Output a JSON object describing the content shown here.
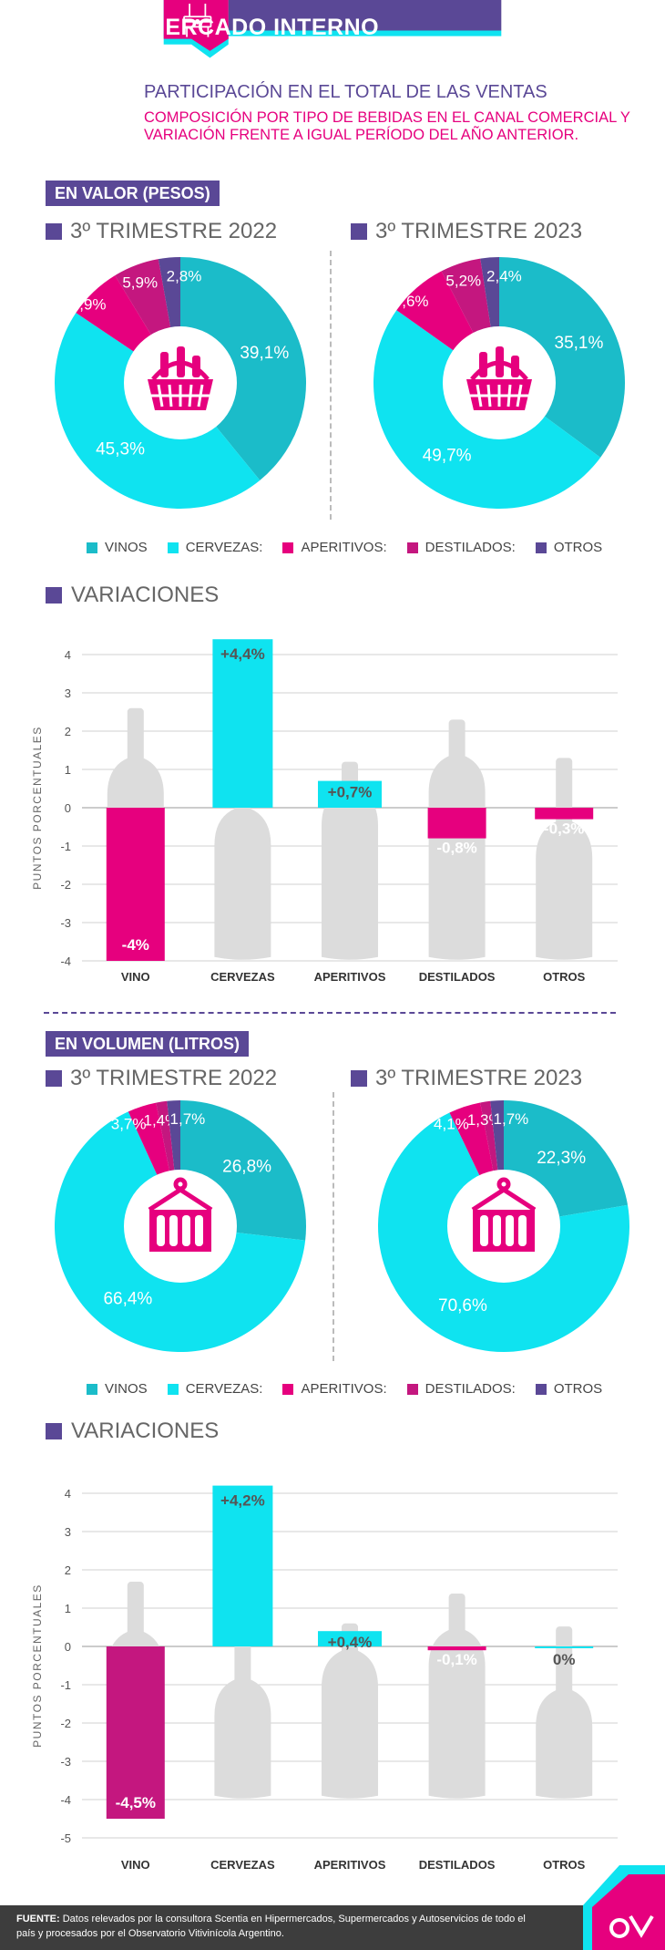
{
  "header": {
    "title": "MERCADO INTERNO",
    "subtitle": "PARTICIPACIÓN EN EL TOTAL DE LAS VENTAS",
    "description": "COMPOSICIÓN POR TIPO DE BEBIDAS EN EL CANAL COMERCIAL Y VARIACIÓN FRENTE A IGUAL PERÍODO DEL AÑO ANTERIOR."
  },
  "colors": {
    "vinos": "#1bbcc9",
    "cervezas": "#0fe3f0",
    "aperitivos": "#e6007e",
    "destilados": "#c4177f",
    "otros": "#5a4896",
    "brand_pink": "#e6007e",
    "brand_purple": "#5a4896",
    "bottle_gray": "#dcdcdc"
  },
  "legend": [
    "VINOS",
    "CERVEZAS:",
    "APERITIVOS:",
    "DESTILADOS:",
    "OTROS"
  ],
  "valor": {
    "section_label": "EN VALOR (PESOS)",
    "variaciones_title": "VARIACIONES",
    "axis_label": "PUNTOS  PORCENTUALES"
  },
  "volumen": {
    "section_label": "EN VOLUMEN (LITROS)",
    "variaciones_title": "VARIACIONES",
    "axis_label": "PUNTOS  PORCENTUALES"
  },
  "footer": {
    "label": "FUENTE:",
    "text": "Datos relevados por la consultora Scentia en Hipermercados, Supermercados y Autoservicios de todo el país y procesados por el Observatorio Vitivinícola Argentino."
  },
  "chart_data": [
    {
      "id": "valor_2022",
      "type": "pie",
      "title": "3º TRIMESTRE 2022",
      "categories": [
        "VINOS",
        "CERVEZAS",
        "APERITIVOS",
        "DESTILADOS",
        "OTROS"
      ],
      "values": [
        39.1,
        45.3,
        6.9,
        5.9,
        2.8
      ],
      "labels": [
        "39,1%",
        "45,3%",
        "6,9%",
        "5,9%",
        "2,8%"
      ]
    },
    {
      "id": "valor_2023",
      "type": "pie",
      "title": "3º TRIMESTRE 2023",
      "categories": [
        "VINOS",
        "CERVEZAS",
        "APERITIVOS",
        "DESTILADOS",
        "OTROS"
      ],
      "values": [
        35.1,
        49.7,
        7.6,
        5.2,
        2.4
      ],
      "labels": [
        "35,1%",
        "49,7%",
        "7,6%",
        "5,2%",
        "2,4%"
      ]
    },
    {
      "id": "valor_var",
      "type": "bar",
      "title": "VARIACIONES",
      "categories": [
        "VINO",
        "CERVEZAS",
        "APERITIVOS",
        "DESTILADOS",
        "OTROS"
      ],
      "values": [
        -4,
        4.4,
        0.7,
        -0.8,
        -0.3
      ],
      "labels": [
        "-4%",
        "+4,4%",
        "+0,7%",
        "-0,8%",
        "-0,3%"
      ],
      "ylabel": "PUNTOS  PORCENTUALES",
      "ylim": [
        -4,
        4
      ],
      "yticks": [
        4,
        3,
        2,
        1,
        0,
        -1,
        -2,
        -3,
        -4
      ]
    },
    {
      "id": "volumen_2022",
      "type": "pie",
      "title": "3º TRIMESTRE 2022",
      "categories": [
        "VINOS",
        "CERVEZAS",
        "APERITIVOS",
        "DESTILADOS",
        "OTROS"
      ],
      "values": [
        26.8,
        66.4,
        3.7,
        1.4,
        1.7
      ],
      "labels": [
        "26,8%",
        "66,4%",
        "3,7%",
        "1,4%",
        "1,7%"
      ]
    },
    {
      "id": "volumen_2023",
      "type": "pie",
      "title": "3º TRIMESTRE 2023",
      "categories": [
        "VINOS",
        "CERVEZAS",
        "APERITIVOS",
        "DESTILADOS",
        "OTROS"
      ],
      "values": [
        22.3,
        70.6,
        4.1,
        1.3,
        1.7
      ],
      "labels": [
        "22,3%",
        "70,6%",
        "4,1%",
        "1,3%",
        "1,7%"
      ]
    },
    {
      "id": "volumen_var",
      "type": "bar",
      "title": "VARIACIONES",
      "categories": [
        "VINO",
        "CERVEZAS",
        "APERITIVOS",
        "DESTILADOS",
        "OTROS"
      ],
      "values": [
        -4.5,
        4.2,
        0.4,
        -0.1,
        0
      ],
      "labels": [
        "-4,5%",
        "+4,2%",
        "+0,4%",
        "-0,1%",
        "0%"
      ],
      "ylabel": "PUNTOS  PORCENTUALES",
      "ylim": [
        -5,
        4
      ],
      "yticks": [
        4,
        3,
        2,
        1,
        0,
        -1,
        -2,
        -3,
        -4,
        -5
      ]
    }
  ]
}
